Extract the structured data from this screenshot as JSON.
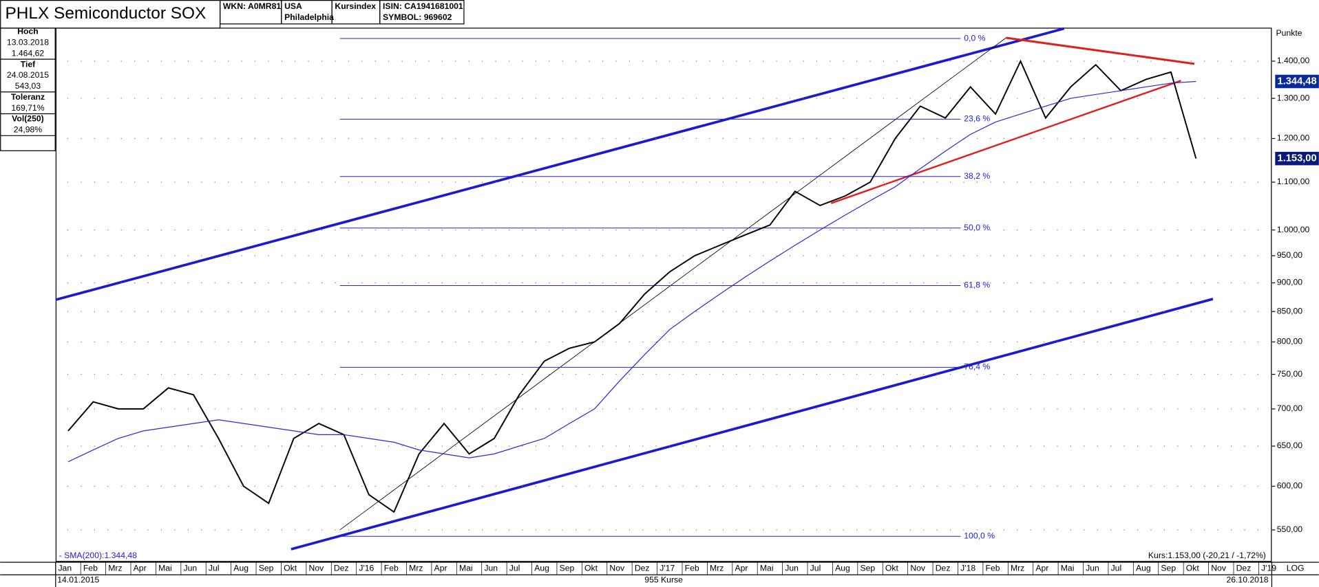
{
  "header": {
    "wkn": "WKN: A0MR81",
    "country": "USA",
    "city": "Philadelphia",
    "kind": "Kursindex",
    "isin": "ISIN: CA1941681001",
    "symbol": "SYMBOL: 969602"
  },
  "info": [
    {
      "label": "Hoch",
      "lines": [
        "13.03.2018",
        "1.464,62"
      ]
    },
    {
      "label": "Tief",
      "lines": [
        "24.08.2015",
        "543,03"
      ]
    },
    {
      "label": "Toleranz",
      "lines": [
        "169,71%"
      ]
    },
    {
      "label": "Vol(250)",
      "lines": [
        "24,98%"
      ]
    }
  ],
  "chart_data": {
    "type": "line",
    "title": "PHLX Semiconductor SOX",
    "y_axis_label": "Punkte",
    "log_scale": true,
    "grid": true,
    "categories": [
      "Jan",
      "Feb",
      "Mrz",
      "Apr",
      "Mai",
      "Jun",
      "Jul",
      "Aug",
      "Sep",
      "Okt",
      "Nov",
      "Dez",
      "J'16",
      "Feb",
      "Mrz",
      "Apr",
      "Mai",
      "Jun",
      "Jul",
      "Aug",
      "Sep",
      "Okt",
      "Nov",
      "Dez",
      "J'17",
      "Feb",
      "Mrz",
      "Apr",
      "Mai",
      "Jun",
      "Jul",
      "Aug",
      "Sep",
      "Okt",
      "Nov",
      "Dez",
      "J'18",
      "Feb",
      "Mrz",
      "Apr",
      "Mai",
      "Jun",
      "Jul",
      "Aug",
      "Sep",
      "Okt",
      "Nov",
      "Dez",
      "J'19"
    ],
    "series": [
      {
        "color": "#000000",
        "values": [
          670,
          710,
          700,
          700,
          730,
          720,
          660,
          600,
          580,
          660,
          680,
          665,
          590,
          570,
          640,
          680,
          640,
          660,
          720,
          770,
          790,
          800,
          830,
          880,
          920,
          950,
          970,
          990,
          1010,
          1080,
          1050,
          1070,
          1100,
          1200,
          1280,
          1250,
          1330,
          1260,
          1400,
          1250,
          1330,
          1390,
          1320,
          1350,
          1370,
          1153,
          null,
          null,
          null
        ]
      },
      {
        "name": "SMA(200)",
        "color": "#2a2ad0",
        "values": [
          630,
          645,
          660,
          670,
          675,
          680,
          685,
          680,
          675,
          670,
          665,
          665,
          660,
          655,
          645,
          640,
          635,
          640,
          650,
          660,
          680,
          700,
          740,
          780,
          820,
          850,
          880,
          910,
          940,
          970,
          1000,
          1030,
          1060,
          1090,
          1130,
          1170,
          1210,
          1240,
          1260,
          1280,
          1300,
          1310,
          1320,
          1330,
          1340,
          1344.48,
          null,
          null,
          null
        ]
      }
    ],
    "ylim": [
      517,
      1494
    ],
    "yticks": [
      {
        "value": 550,
        "label": "550,00"
      },
      {
        "value": 600,
        "label": "600,00"
      },
      {
        "value": 650,
        "label": "650,00"
      },
      {
        "value": 700,
        "label": "700,00"
      },
      {
        "value": 750,
        "label": "750,00"
      },
      {
        "value": 800,
        "label": "800,00"
      },
      {
        "value": 850,
        "label": "850,00"
      },
      {
        "value": 900,
        "label": "900,00"
      },
      {
        "value": 950,
        "label": "950,00"
      },
      {
        "value": 1000,
        "label": "1.000,00"
      },
      {
        "value": 1100,
        "label": "1.100,00"
      },
      {
        "value": 1200,
        "label": "1.200,00"
      },
      {
        "value": 1300,
        "label": "1.300,00"
      },
      {
        "value": 1400,
        "label": "1.400,00"
      }
    ],
    "last_values": [
      {
        "value": 1344.48,
        "label": "1.344,48",
        "color": "#0a2a9a"
      },
      {
        "value": 1153,
        "label": "1.153,00",
        "color": "#0a1a7a"
      }
    ],
    "fib": {
      "high": 1464.62,
      "low": 543.03,
      "color": "#2020e0",
      "levels": [
        {
          "value": 0,
          "label": "0,0 %"
        },
        {
          "value": 23.6,
          "label": "23,6 %"
        },
        {
          "value": 38.2,
          "label": "38,2 %"
        },
        {
          "value": 50,
          "label": "50,0 %"
        },
        {
          "value": 61.8,
          "label": "61,8 %"
        },
        {
          "value": 76.4,
          "label": "76,4 %"
        },
        {
          "value": 100,
          "label": "100,0 %"
        }
      ]
    },
    "sma_label": "- SMA(200):1.344,48",
    "kurs_label": "Kurs:1.153,00 (-20,21 / -1,72%)",
    "start_date": "14.01.2015",
    "count_label": "955 Kurse",
    "end_date": "26.10.2018",
    "scale_label": "LOG"
  }
}
